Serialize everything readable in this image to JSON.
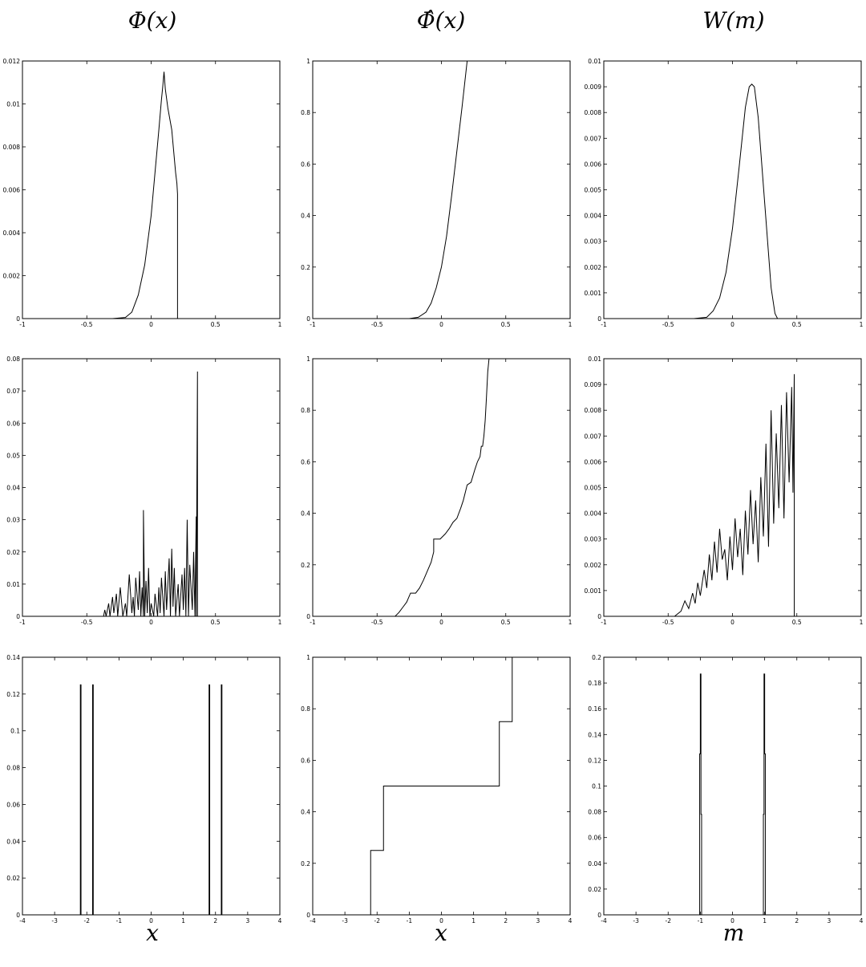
{
  "figure": {
    "column_titles": [
      "Φ(x)",
      "Φ̂(x)",
      "W(m)"
    ],
    "column_xlabels": [
      "x",
      "x",
      "m"
    ]
  },
  "chart_data": [
    {
      "id": "r1c1",
      "type": "line",
      "title": "Φ(x)",
      "xlabel": "",
      "ylabel": "",
      "xlim": [
        -1,
        1
      ],
      "ylim": [
        0,
        0.012
      ],
      "xticks": [
        -1,
        -0.5,
        0,
        0.5,
        1
      ],
      "xtick_labels": [
        "-1",
        "-0.5",
        "0",
        "0.5",
        "1"
      ],
      "yticks": [
        0,
        0.002,
        0.004,
        0.006,
        0.008,
        0.01,
        0.012
      ],
      "ytick_labels": [
        "0",
        "0.002",
        "0.004",
        "0.006",
        "0.008",
        "0.01",
        "0.012"
      ],
      "grid": false,
      "series": [
        {
          "x": [
            -1,
            -0.3,
            -0.2,
            -0.15,
            -0.1,
            -0.05,
            0,
            0.03,
            0.06,
            0.08,
            0.09,
            0.1,
            0.11,
            0.13,
            0.16,
            0.19,
            0.2,
            0.205,
            0.205,
            1
          ],
          "y": [
            0,
            0,
            5e-05,
            0.0003,
            0.0011,
            0.0025,
            0.0048,
            0.0068,
            0.0088,
            0.0102,
            0.0108,
            0.0115,
            0.0107,
            0.0098,
            0.0088,
            0.0068,
            0.0063,
            0.0058,
            0,
            0
          ]
        }
      ]
    },
    {
      "id": "r1c2",
      "type": "line",
      "title": "Φ̂(x)",
      "xlabel": "",
      "ylabel": "",
      "xlim": [
        -1,
        1
      ],
      "ylim": [
        0,
        1
      ],
      "xticks": [
        -1,
        -0.5,
        0,
        0.5,
        1
      ],
      "xtick_labels": [
        "-1",
        "-0.5",
        "0",
        "0.5",
        "1"
      ],
      "yticks": [
        0,
        0.2,
        0.4,
        0.6,
        0.8,
        1
      ],
      "ytick_labels": [
        "0",
        "0.2",
        "0.4",
        "0.6",
        "0.8",
        "1"
      ],
      "grid": false,
      "series": [
        {
          "x": [
            -1,
            -0.25,
            -0.18,
            -0.12,
            -0.08,
            -0.04,
            0,
            0.04,
            0.08,
            0.12,
            0.16,
            0.2,
            1
          ],
          "y": [
            0,
            0,
            0.005,
            0.025,
            0.06,
            0.12,
            0.2,
            0.32,
            0.48,
            0.65,
            0.82,
            1,
            1
          ]
        }
      ]
    },
    {
      "id": "r1c3",
      "type": "line",
      "title": "W(m)",
      "xlabel": "",
      "ylabel": "",
      "xlim": [
        -1,
        1
      ],
      "ylim": [
        0,
        0.01
      ],
      "xticks": [
        -1,
        -0.5,
        0,
        0.5,
        1
      ],
      "xtick_labels": [
        "-1",
        "-0.5",
        "0",
        "0.5",
        "1"
      ],
      "yticks": [
        0,
        0.001,
        0.002,
        0.003,
        0.004,
        0.005,
        0.006,
        0.007,
        0.008,
        0.009,
        0.01
      ],
      "ytick_labels": [
        "0",
        "0.001",
        "0.002",
        "0.003",
        "0.004",
        "0.005",
        "0.006",
        "0.007",
        "0.008",
        "0.009",
        "0.01"
      ],
      "grid": false,
      "series": [
        {
          "x": [
            -1,
            -0.3,
            -0.2,
            -0.15,
            -0.1,
            -0.05,
            0,
            0.05,
            0.1,
            0.13,
            0.15,
            0.17,
            0.2,
            0.25,
            0.3,
            0.33,
            0.35,
            1
          ],
          "y": [
            0,
            0,
            5e-05,
            0.0003,
            0.0008,
            0.0018,
            0.0035,
            0.0058,
            0.0082,
            0.009,
            0.0091,
            0.009,
            0.0078,
            0.0045,
            0.0012,
            0.0002,
            0,
            0
          ]
        }
      ]
    },
    {
      "id": "r2c1",
      "type": "line",
      "title": "",
      "xlabel": "",
      "ylabel": "",
      "xlim": [
        -1,
        1
      ],
      "ylim": [
        0,
        0.08
      ],
      "xticks": [
        -1,
        -0.5,
        0,
        0.5,
        1
      ],
      "xtick_labels": [
        "-1",
        "-0.5",
        "0",
        "0.5",
        "1"
      ],
      "yticks": [
        0,
        0.01,
        0.02,
        0.03,
        0.04,
        0.05,
        0.06,
        0.07,
        0.08
      ],
      "ytick_labels": [
        "0",
        "0.01",
        "0.02",
        "0.03",
        "0.04",
        "0.05",
        "0.06",
        "0.07",
        "0.08"
      ],
      "grid": false,
      "series": [
        {
          "x": [
            -1,
            -0.37,
            -0.36,
            -0.35,
            -0.33,
            -0.32,
            -0.3,
            -0.29,
            -0.27,
            -0.26,
            -0.24,
            -0.22,
            -0.2,
            -0.19,
            -0.17,
            -0.15,
            -0.14,
            -0.13,
            -0.12,
            -0.1,
            -0.09,
            -0.08,
            -0.07,
            -0.06,
            -0.06,
            -0.05,
            -0.04,
            -0.03,
            -0.02,
            -0.01,
            0,
            0.02,
            0.03,
            0.05,
            0.06,
            0.07,
            0.08,
            0.1,
            0.11,
            0.12,
            0.14,
            0.15,
            0.16,
            0.17,
            0.18,
            0.19,
            0.21,
            0.22,
            0.24,
            0.25,
            0.26,
            0.27,
            0.28,
            0.29,
            0.3,
            0.32,
            0.33,
            0.34,
            0.35,
            0.35,
            0.36,
            0.36,
            1
          ],
          "y": [
            0,
            0,
            0.002,
            0,
            0.004,
            0,
            0.006,
            0.001,
            0.007,
            0,
            0.009,
            0,
            0.004,
            0,
            0.013,
            0.001,
            0.006,
            0,
            0.012,
            0.002,
            0.014,
            0,
            0.009,
            0,
            0.033,
            0,
            0.011,
            0.001,
            0.015,
            0,
            0.004,
            0,
            0.007,
            0,
            0.009,
            0.001,
            0.012,
            0,
            0.014,
            0.002,
            0.018,
            0,
            0.021,
            0.003,
            0.015,
            0,
            0.01,
            0,
            0.013,
            0.002,
            0.015,
            0,
            0.03,
            0,
            0.016,
            0.002,
            0.02,
            0,
            0.031,
            0,
            0.076,
            0,
            0
          ]
        }
      ]
    },
    {
      "id": "r2c2",
      "type": "line",
      "title": "",
      "xlabel": "",
      "ylabel": "",
      "xlim": [
        -1,
        1
      ],
      "ylim": [
        0,
        1
      ],
      "xticks": [
        -1,
        -0.5,
        0,
        0.5,
        1
      ],
      "xtick_labels": [
        "-1",
        "-0.5",
        "0",
        "0.5",
        "1"
      ],
      "yticks": [
        0,
        0.2,
        0.4,
        0.6,
        0.8,
        1
      ],
      "ytick_labels": [
        "0",
        "0.2",
        "0.4",
        "0.6",
        "0.8",
        "1"
      ],
      "grid": false,
      "series": [
        {
          "x": [
            -1,
            -0.36,
            -0.33,
            -0.3,
            -0.27,
            -0.24,
            -0.2,
            -0.17,
            -0.14,
            -0.11,
            -0.08,
            -0.06,
            -0.06,
            -0.01,
            0,
            0.03,
            0.06,
            0.09,
            0.12,
            0.15,
            0.17,
            0.19,
            0.2,
            0.23,
            0.26,
            0.28,
            0.3,
            0.31,
            0.32,
            0.33,
            0.34,
            0.35,
            0.36,
            0.37,
            1
          ],
          "y": [
            0,
            0,
            0.015,
            0.035,
            0.055,
            0.09,
            0.09,
            0.11,
            0.14,
            0.175,
            0.21,
            0.25,
            0.3,
            0.3,
            0.305,
            0.32,
            0.34,
            0.365,
            0.38,
            0.42,
            0.45,
            0.49,
            0.51,
            0.52,
            0.57,
            0.6,
            0.62,
            0.66,
            0.66,
            0.7,
            0.76,
            0.85,
            0.95,
            1,
            1
          ]
        }
      ]
    },
    {
      "id": "r2c3",
      "type": "line",
      "title": "",
      "xlabel": "",
      "ylabel": "",
      "xlim": [
        -1,
        1
      ],
      "ylim": [
        0,
        0.01
      ],
      "xticks": [
        -1,
        -0.5,
        0,
        0.5,
        1
      ],
      "xtick_labels": [
        "-1",
        "-0.5",
        "0",
        "0.5",
        "1"
      ],
      "yticks": [
        0,
        0.001,
        0.002,
        0.003,
        0.004,
        0.005,
        0.006,
        0.007,
        0.008,
        0.009,
        0.01
      ],
      "ytick_labels": [
        "0",
        "0.001",
        "0.002",
        "0.003",
        "0.004",
        "0.005",
        "0.006",
        "0.007",
        "0.008",
        "0.009",
        "0.01"
      ],
      "grid": false,
      "series": [
        {
          "x": [
            -1,
            -0.45,
            -0.4,
            -0.37,
            -0.34,
            -0.31,
            -0.29,
            -0.27,
            -0.25,
            -0.22,
            -0.2,
            -0.18,
            -0.16,
            -0.14,
            -0.12,
            -0.1,
            -0.08,
            -0.06,
            -0.04,
            -0.02,
            0,
            0.02,
            0.04,
            0.06,
            0.08,
            0.1,
            0.12,
            0.14,
            0.16,
            0.18,
            0.2,
            0.22,
            0.24,
            0.26,
            0.28,
            0.3,
            0.32,
            0.34,
            0.36,
            0.38,
            0.4,
            0.42,
            0.44,
            0.46,
            0.47,
            0.48,
            0.48,
            1
          ],
          "y": [
            0,
            0,
            0.0002,
            0.0006,
            0.0003,
            0.0009,
            0.0005,
            0.0013,
            0.0008,
            0.0018,
            0.0011,
            0.0024,
            0.0014,
            0.0029,
            0.0017,
            0.0034,
            0.0022,
            0.0026,
            0.0014,
            0.0031,
            0.0018,
            0.0038,
            0.0023,
            0.0034,
            0.0016,
            0.0041,
            0.0024,
            0.0049,
            0.0028,
            0.0045,
            0.0021,
            0.0054,
            0.0031,
            0.0067,
            0.0027,
            0.008,
            0.0036,
            0.0071,
            0.0042,
            0.0082,
            0.0038,
            0.0087,
            0.0052,
            0.0089,
            0.0048,
            0.0094,
            0,
            0
          ]
        }
      ]
    },
    {
      "id": "r3c1",
      "type": "line",
      "title": "",
      "xlabel": "x",
      "ylabel": "",
      "xlim": [
        -4,
        4
      ],
      "ylim": [
        0,
        0.14
      ],
      "xticks": [
        -4,
        -3,
        -2,
        -1,
        0,
        1,
        2,
        3,
        4
      ],
      "xtick_labels": [
        "-4",
        "-3",
        "-2",
        "-1",
        "0",
        "1",
        "2",
        "3",
        "4"
      ],
      "yticks": [
        0,
        0.02,
        0.04,
        0.06,
        0.08,
        0.1,
        0.12,
        0.14
      ],
      "ytick_labels": [
        "0",
        "0.02",
        "0.04",
        "0.06",
        "0.08",
        "0.1",
        "0.12",
        "0.14"
      ],
      "grid": false,
      "series": [
        {
          "x": [
            -4,
            -2.2,
            -2.2,
            -2.18,
            -2.18,
            -1.82,
            -1.82,
            -1.8,
            -1.8,
            1.8,
            1.8,
            1.82,
            1.82,
            2.18,
            2.18,
            2.2,
            2.2,
            4
          ],
          "y": [
            0,
            0,
            0.125,
            0.125,
            0,
            0,
            0.125,
            0.125,
            0,
            0,
            0.125,
            0.125,
            0,
            0,
            0.125,
            0.125,
            0,
            0
          ]
        }
      ]
    },
    {
      "id": "r3c2",
      "type": "line",
      "title": "",
      "xlabel": "x",
      "ylabel": "",
      "xlim": [
        -4,
        4
      ],
      "ylim": [
        0,
        1
      ],
      "xticks": [
        -4,
        -3,
        -2,
        -1,
        0,
        1,
        2,
        3,
        4
      ],
      "xtick_labels": [
        "-4",
        "-3",
        "-2",
        "-1",
        "0",
        "1",
        "2",
        "3",
        "4"
      ],
      "yticks": [
        0,
        0.2,
        0.4,
        0.6,
        0.8,
        1
      ],
      "ytick_labels": [
        "0",
        "0.2",
        "0.4",
        "0.6",
        "0.8",
        "1"
      ],
      "grid": false,
      "series": [
        {
          "x": [
            -2.2,
            -2.2,
            -1.8,
            -1.8,
            1.8,
            1.8,
            2.2,
            2.2,
            4
          ],
          "y": [
            0,
            0.25,
            0.25,
            0.5,
            0.5,
            0.75,
            0.75,
            1,
            1
          ]
        }
      ]
    },
    {
      "id": "r3c3",
      "type": "line",
      "title": "",
      "xlabel": "m",
      "ylabel": "",
      "xlim": [
        -4,
        4
      ],
      "ylim": [
        0,
        0.2
      ],
      "xticks": [
        -4,
        -3,
        -2,
        -1,
        0,
        1,
        2,
        3,
        4
      ],
      "xtick_labels": [
        "-4",
        "-3",
        "-2",
        "-1",
        "0",
        "1",
        "2",
        "3",
        "4"
      ],
      "yticks": [
        0,
        0.02,
        0.04,
        0.06,
        0.08,
        0.1,
        0.12,
        0.14,
        0.16,
        0.18,
        0.2
      ],
      "ytick_labels": [
        "0",
        "0.02",
        "0.04",
        "0.06",
        "0.08",
        "0.1",
        "0.12",
        "0.14",
        "0.16",
        "0.18",
        "0.2"
      ],
      "grid": false,
      "series": [
        {
          "x": [
            -4,
            -1.02,
            -1.02,
            -1.0,
            -1.0,
            -0.98,
            -0.98,
            -0.96,
            -0.96,
            0.96,
            0.96,
            0.98,
            0.98,
            1.0,
            1.0,
            1.02,
            1.02,
            4
          ],
          "y": [
            0,
            0,
            0.125,
            0.125,
            0.187,
            0.187,
            0.078,
            0.078,
            0,
            0,
            0.078,
            0.078,
            0.187,
            0.187,
            0.125,
            0.125,
            0,
            0
          ]
        }
      ]
    }
  ]
}
